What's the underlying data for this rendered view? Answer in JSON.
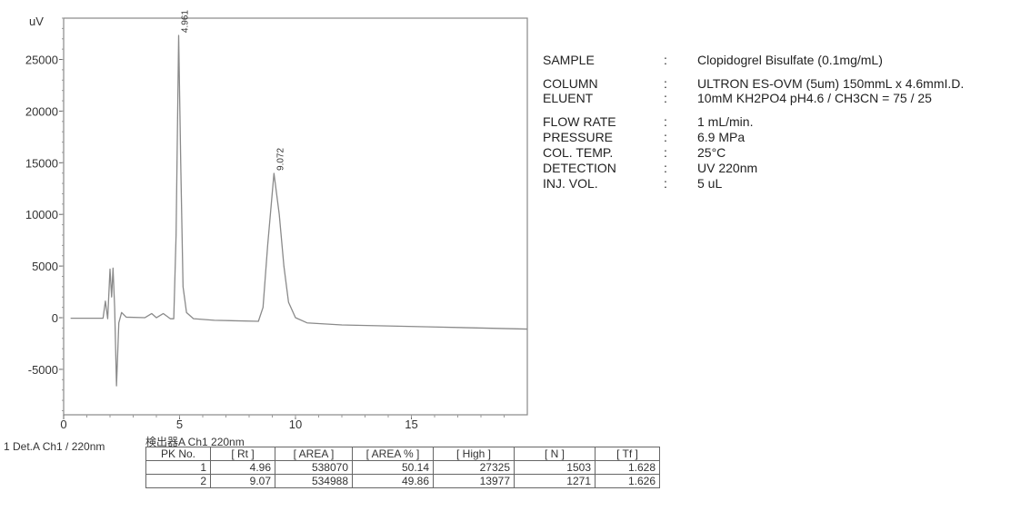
{
  "chart_data": {
    "type": "line",
    "title": "",
    "ylabel": "uV",
    "xlabel": "",
    "xlim": [
      0,
      20
    ],
    "ylim": [
      -9400,
      29000
    ],
    "xticks": [
      0,
      5,
      10,
      15
    ],
    "yticks": [
      -5000,
      0,
      5000,
      10000,
      15000,
      20000,
      25000
    ],
    "grid": false,
    "line_color": "#8a8a8a",
    "series": [
      {
        "x": [
          0.3,
          1.7,
          1.8,
          1.9,
          2.0,
          2.07,
          2.13,
          2.2,
          2.28,
          2.38,
          2.5,
          2.7,
          3.5,
          3.8,
          4.0,
          4.3,
          4.6,
          4.75,
          4.85,
          4.961,
          5.05,
          5.15,
          5.3,
          5.6,
          6.5,
          8.4,
          8.6,
          8.8,
          9.072,
          9.3,
          9.5,
          9.7,
          10.0,
          10.5,
          12,
          16,
          20
        ],
        "y": [
          -50,
          -50,
          1600,
          -100,
          4700,
          2000,
          4800,
          1000,
          -6600,
          -500,
          500,
          50,
          0,
          400,
          0,
          400,
          -100,
          -100,
          8000,
          27325,
          15000,
          3000,
          500,
          -100,
          -250,
          -350,
          1000,
          7000,
          13977,
          10000,
          5000,
          1500,
          0,
          -500,
          -700,
          -900,
          -1100
        ]
      }
    ],
    "peak_labels": [
      {
        "x": 4.961,
        "y": 27325,
        "text": "4.961"
      },
      {
        "x": 9.072,
        "y": 13977,
        "text": "9.072"
      }
    ]
  },
  "conditions": [
    {
      "key": "SAMPLE",
      "value": "Clopidogrel Bisulfate  (0.1mg/mL)"
    },
    {
      "key": "COLUMN",
      "value": "ULTRON ES-OVM (5um)  150mmL x 4.6mmI.D."
    },
    {
      "key": "ELUENT",
      "value": "10mM KH2PO4  pH4.6 / CH3CN = 75 / 25"
    },
    {
      "key": "FLOW RATE",
      "value": "1 mL/min."
    },
    {
      "key": "PRESSURE",
      "value": "6.9 MPa"
    },
    {
      "key": "COL. TEMP.",
      "value": "25°C"
    },
    {
      "key": "DETECTION",
      "value": "UV  220nm"
    },
    {
      "key": "INJ. VOL.",
      "value": "5 uL"
    }
  ],
  "separator": ":",
  "detector_label": "1   Det.A Ch1 / 220nm",
  "table": {
    "title": "検出器A Ch1 220nm",
    "headers": [
      "PK No.",
      "[ Rt ]",
      "[ AREA ]",
      "[ AREA % ]",
      "[ High ]",
      "[ N ]",
      "[ Tf ]"
    ],
    "rows": [
      [
        "1",
        "4.96",
        "538070",
        "50.14",
        "27325",
        "1503",
        "1.628"
      ],
      [
        "2",
        "9.07",
        "534988",
        "49.86",
        "13977",
        "1271",
        "1.626"
      ]
    ]
  }
}
